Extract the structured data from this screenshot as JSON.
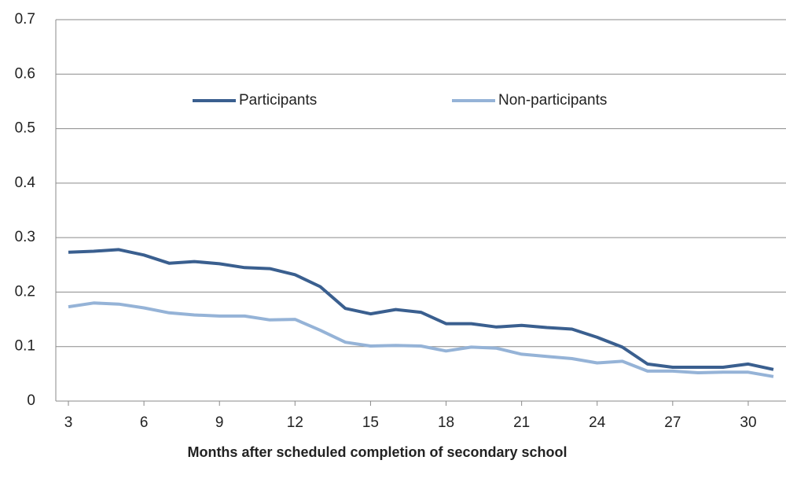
{
  "chart_data": {
    "type": "line",
    "x_label": "Months after scheduled completion of secondary school",
    "x": [
      3,
      4,
      5,
      6,
      7,
      8,
      9,
      10,
      11,
      12,
      13,
      14,
      15,
      16,
      17,
      18,
      19,
      20,
      21,
      22,
      23,
      24,
      25,
      26,
      27,
      28,
      29,
      30,
      31
    ],
    "series": [
      {
        "name": "Participants",
        "color": "#3a5f8f",
        "values": [
          0.273,
          0.275,
          0.278,
          0.268,
          0.253,
          0.256,
          0.252,
          0.245,
          0.243,
          0.232,
          0.21,
          0.17,
          0.16,
          0.168,
          0.163,
          0.142,
          0.142,
          0.136,
          0.139,
          0.135,
          0.132,
          0.117,
          0.099,
          0.068,
          0.062,
          0.062,
          0.062,
          0.068,
          0.058
        ]
      },
      {
        "name": "Non-participants",
        "color": "#95b3d7",
        "values": [
          0.173,
          0.18,
          0.178,
          0.171,
          0.162,
          0.158,
          0.156,
          0.156,
          0.149,
          0.15,
          0.13,
          0.108,
          0.101,
          0.102,
          0.101,
          0.092,
          0.099,
          0.097,
          0.086,
          0.082,
          0.078,
          0.07,
          0.073,
          0.055,
          0.055,
          0.052,
          0.053,
          0.053,
          0.045
        ]
      }
    ],
    "xlim": [
      2.5,
      31.5
    ],
    "xticks": [
      3,
      6,
      9,
      12,
      15,
      18,
      21,
      24,
      27,
      30
    ],
    "ylim": [
      0,
      0.7
    ],
    "yticks": [
      0,
      0.1,
      0.2,
      0.3,
      0.4,
      0.5,
      0.6,
      0.7
    ],
    "grid": true,
    "legend": "top"
  }
}
